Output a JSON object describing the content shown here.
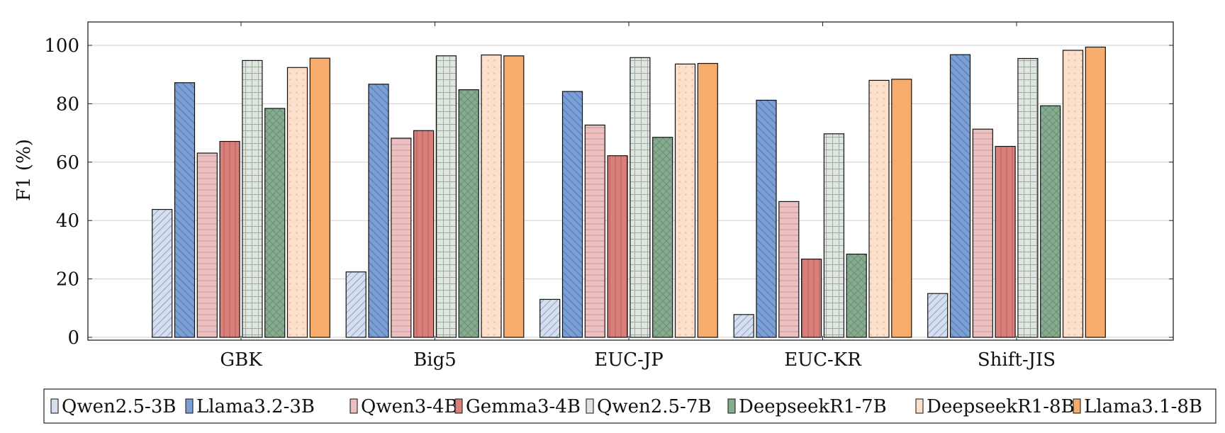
{
  "chart_data": {
    "type": "bar",
    "title": "",
    "xlabel": "",
    "ylabel": "F1 (%)",
    "ylim": [
      0,
      108
    ],
    "yticks": [
      0,
      20,
      40,
      60,
      80,
      100
    ],
    "grid": "horizontal",
    "legend_placement": "bottom",
    "categories": [
      "GBK",
      "Big5",
      "EUC-JP",
      "EUC-KR",
      "Shift-JIS"
    ],
    "series": [
      {
        "name": "Qwen2.5-3B",
        "color": "#d5dff0",
        "pattern": "diagonal-up",
        "values": [
          43.8,
          22.4,
          13.0,
          7.8,
          15.0
        ]
      },
      {
        "name": "Llama3.2-3B",
        "color": "#7a9fd4",
        "pattern": "diagonal-down",
        "values": [
          87.2,
          86.7,
          84.2,
          81.2,
          96.8
        ]
      },
      {
        "name": "Qwen3-4B",
        "color": "#ecc0c0",
        "pattern": "horizontal",
        "values": [
          63.1,
          68.2,
          72.7,
          46.5,
          71.3
        ]
      },
      {
        "name": "Gemma3-4B",
        "color": "#d9807a",
        "pattern": "vertical",
        "values": [
          67.1,
          70.8,
          62.2,
          26.8,
          65.4
        ]
      },
      {
        "name": "Qwen2.5-7B",
        "color": "#dfe6df",
        "pattern": "grid",
        "values": [
          94.8,
          96.4,
          95.8,
          69.7,
          95.5
        ]
      },
      {
        "name": "DeepseekR1-7B",
        "color": "#86ac8f",
        "pattern": "crosshatch",
        "values": [
          78.4,
          84.8,
          68.5,
          28.5,
          79.3
        ]
      },
      {
        "name": "DeepseekR1-8B",
        "color": "#fde0cb",
        "pattern": "dots",
        "values": [
          92.4,
          96.7,
          93.6,
          88.0,
          98.3
        ]
      },
      {
        "name": "Llama3.1-8B",
        "color": "#f5ac6c",
        "pattern": "solid",
        "values": [
          95.6,
          96.4,
          93.8,
          88.4,
          99.4
        ]
      }
    ]
  }
}
